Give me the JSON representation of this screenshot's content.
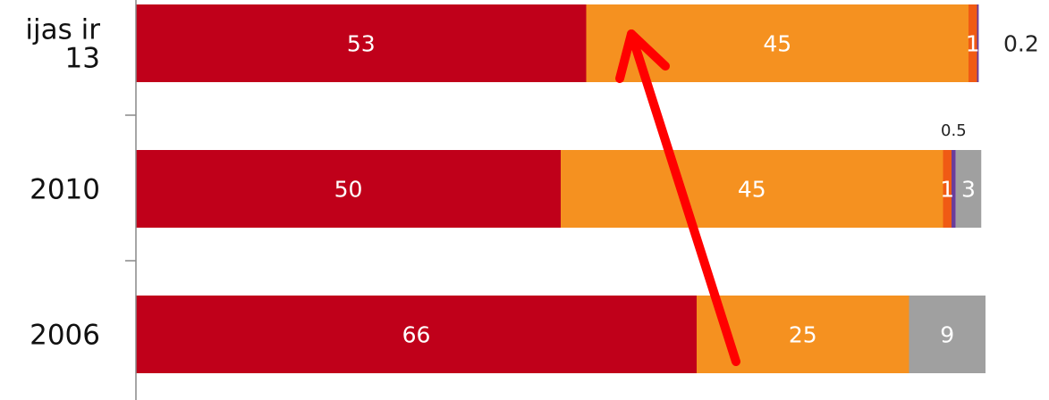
{
  "chart_data": {
    "type": "bar",
    "orientation": "horizontal",
    "stacked": true,
    "categories": [
      "ijas ir\n13",
      "2010",
      "2006"
    ],
    "series": [
      {
        "values": [
          53,
          50,
          66
        ],
        "color": "#c0001a"
      },
      {
        "values": [
          45,
          45,
          25
        ],
        "color": "#f59120"
      },
      {
        "values": [
          1,
          1,
          0
        ],
        "color": "#f05a14"
      },
      {
        "values": [
          0.2,
          0.5,
          0
        ],
        "color": "#6a3d9a"
      },
      {
        "values": [
          0,
          3,
          9
        ],
        "color": "#a0a0a0"
      }
    ],
    "data_labels": [
      [
        "53",
        "45",
        "1",
        "0.2",
        ""
      ],
      [
        "50",
        "45",
        "1",
        "0.5",
        "3"
      ],
      [
        "66",
        "25",
        "",
        "",
        "9"
      ]
    ],
    "annotation": {
      "type": "arrow",
      "color": "#ff0000"
    },
    "grid": false,
    "legend": "none"
  }
}
